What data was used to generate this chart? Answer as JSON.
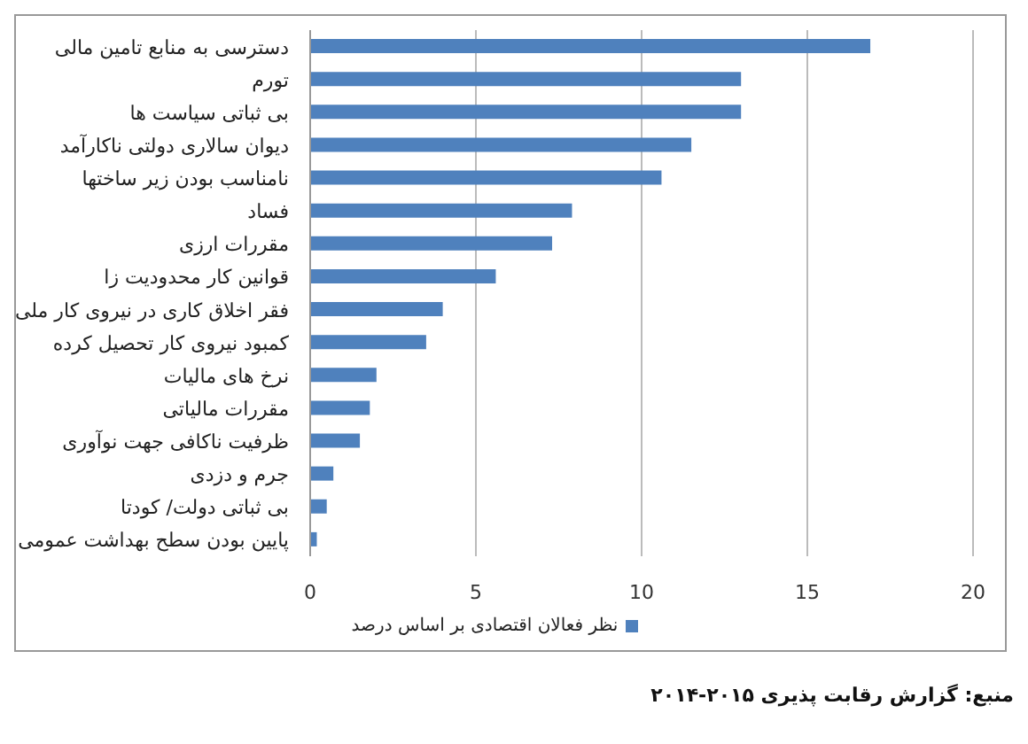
{
  "chart_data": {
    "type": "bar",
    "orientation": "horizontal",
    "categories": [
      "دسترسی به منابع تامین مالی",
      "تورم",
      "بی ثباتی سیاست ها",
      "دیوان سالاری دولتی ناکارآمد",
      "نامناسب بودن زیر ساختها",
      "فساد",
      "مقررات ارزی",
      "قوانین کار محدودیت زا",
      "فقر اخلاق کاری در نیروی کار ملی",
      "کمبود نیروی کار تحصیل کرده",
      "نرخ های مالیات",
      "مقررات مالیاتی",
      "ظرفیت ناکافی جهت نوآوری",
      "جرم و دزدی",
      "بی ثباتی دولت/ کودتا",
      "پایین بودن سطح بهداشت عمومی"
    ],
    "series": [
      {
        "name": "نظر فعالان اقتصادی بر اساس درصد",
        "color": "#4f81bd",
        "values": [
          16.9,
          13.0,
          13.0,
          11.5,
          10.6,
          7.9,
          7.3,
          5.6,
          4.0,
          3.5,
          2.0,
          1.8,
          1.5,
          0.7,
          0.5,
          0.2
        ]
      }
    ],
    "xlim": [
      0,
      20
    ],
    "xticks": [
      0,
      5,
      10,
      15,
      20
    ],
    "grid": "x",
    "legend": "bottom",
    "annotations": [
      "منبع: گزارش رقابت پذیری ۲۰۱۵-۲۰۱۴"
    ]
  }
}
